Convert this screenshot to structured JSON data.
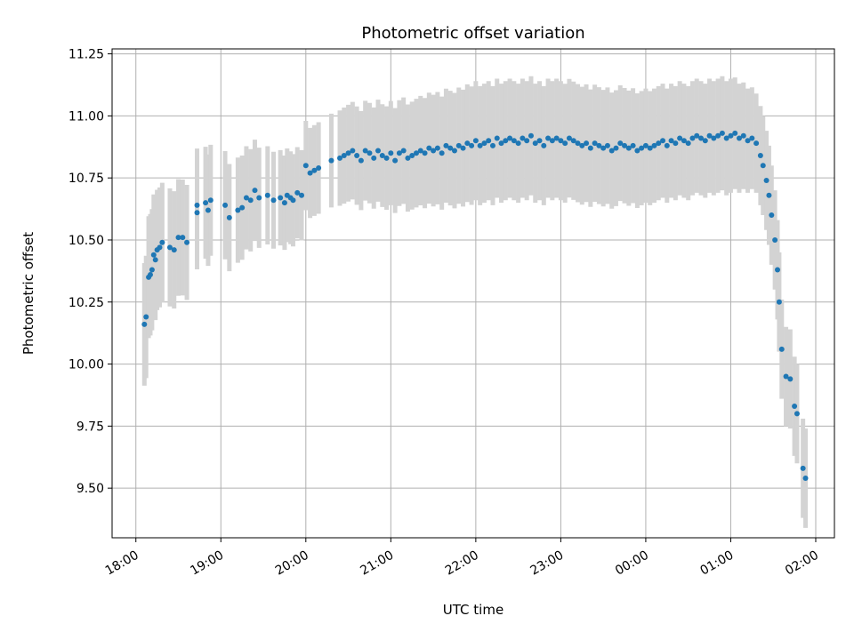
{
  "chart_data": {
    "type": "scatter",
    "title": "Photometric offset variation",
    "xlabel": "UTC time",
    "ylabel": "Photometric offset",
    "x_tick_labels": [
      "18:00",
      "19:00",
      "20:00",
      "21:00",
      "22:00",
      "23:00",
      "00:00",
      "01:00",
      "02:00"
    ],
    "y_tick_labels": [
      "9.50",
      "9.75",
      "10.00",
      "10.25",
      "10.50",
      "10.75",
      "11.00",
      "11.25"
    ],
    "x_unit": "hours since 18:00 UTC",
    "xlim": [
      -0.28,
      8.22
    ],
    "ylim": [
      9.3,
      11.27
    ],
    "grid": true,
    "colors": {
      "points": "#1f77b4",
      "errorbars": "#d3d3d3",
      "grid": "#b0b0b0"
    },
    "errorbar_halfwidth": [
      [
        0.0,
        0.25
      ],
      [
        1.0,
        0.22
      ],
      [
        2.0,
        0.18
      ],
      [
        3.0,
        0.21
      ],
      [
        4.0,
        0.24
      ],
      [
        5.0,
        0.24
      ],
      [
        6.0,
        0.23
      ],
      [
        7.0,
        0.23
      ],
      [
        7.3,
        0.2
      ],
      [
        7.9,
        0.2
      ]
    ],
    "series": [
      {
        "values": [
          [
            0.1,
            10.16
          ],
          [
            0.12,
            10.19
          ],
          [
            0.15,
            10.35
          ],
          [
            0.17,
            10.36
          ],
          [
            0.19,
            10.38
          ],
          [
            0.21,
            10.44
          ],
          [
            0.23,
            10.42
          ],
          [
            0.25,
            10.46
          ],
          [
            0.28,
            10.47
          ],
          [
            0.31,
            10.49
          ],
          [
            0.4,
            10.47
          ],
          [
            0.45,
            10.46
          ],
          [
            0.5,
            10.51
          ],
          [
            0.55,
            10.51
          ],
          [
            0.6,
            10.49
          ],
          [
            0.72,
            10.64
          ],
          [
            0.72,
            10.61
          ],
          [
            0.82,
            10.65
          ],
          [
            0.85,
            10.62
          ],
          [
            0.88,
            10.66
          ],
          [
            1.05,
            10.64
          ],
          [
            1.1,
            10.59
          ],
          [
            1.2,
            10.62
          ],
          [
            1.25,
            10.63
          ],
          [
            1.3,
            10.67
          ],
          [
            1.35,
            10.66
          ],
          [
            1.4,
            10.7
          ],
          [
            1.45,
            10.67
          ],
          [
            1.55,
            10.68
          ],
          [
            1.62,
            10.66
          ],
          [
            1.7,
            10.67
          ],
          [
            1.75,
            10.65
          ],
          [
            1.78,
            10.68
          ],
          [
            1.82,
            10.67
          ],
          [
            1.85,
            10.66
          ],
          [
            1.9,
            10.69
          ],
          [
            1.95,
            10.68
          ],
          [
            2.0,
            10.8
          ],
          [
            2.05,
            10.77
          ],
          [
            2.1,
            10.78
          ],
          [
            2.15,
            10.79
          ],
          [
            2.3,
            10.82
          ],
          [
            2.4,
            10.83
          ],
          [
            2.45,
            10.84
          ],
          [
            2.5,
            10.85
          ],
          [
            2.55,
            10.86
          ],
          [
            2.6,
            10.84
          ],
          [
            2.65,
            10.82
          ],
          [
            2.7,
            10.86
          ],
          [
            2.75,
            10.85
          ],
          [
            2.8,
            10.83
          ],
          [
            2.85,
            10.86
          ],
          [
            2.9,
            10.84
          ],
          [
            2.95,
            10.83
          ],
          [
            3.0,
            10.85
          ],
          [
            3.05,
            10.82
          ],
          [
            3.1,
            10.85
          ],
          [
            3.15,
            10.86
          ],
          [
            3.2,
            10.83
          ],
          [
            3.25,
            10.84
          ],
          [
            3.3,
            10.85
          ],
          [
            3.35,
            10.86
          ],
          [
            3.4,
            10.85
          ],
          [
            3.45,
            10.87
          ],
          [
            3.5,
            10.86
          ],
          [
            3.55,
            10.87
          ],
          [
            3.6,
            10.85
          ],
          [
            3.65,
            10.88
          ],
          [
            3.7,
            10.87
          ],
          [
            3.75,
            10.86
          ],
          [
            3.8,
            10.88
          ],
          [
            3.85,
            10.87
          ],
          [
            3.9,
            10.89
          ],
          [
            3.95,
            10.88
          ],
          [
            4.0,
            10.9
          ],
          [
            4.05,
            10.88
          ],
          [
            4.1,
            10.89
          ],
          [
            4.15,
            10.9
          ],
          [
            4.2,
            10.88
          ],
          [
            4.25,
            10.91
          ],
          [
            4.3,
            10.89
          ],
          [
            4.35,
            10.9
          ],
          [
            4.4,
            10.91
          ],
          [
            4.45,
            10.9
          ],
          [
            4.5,
            10.89
          ],
          [
            4.55,
            10.91
          ],
          [
            4.6,
            10.9
          ],
          [
            4.65,
            10.92
          ],
          [
            4.7,
            10.89
          ],
          [
            4.75,
            10.9
          ],
          [
            4.8,
            10.88
          ],
          [
            4.85,
            10.91
          ],
          [
            4.9,
            10.9
          ],
          [
            4.95,
            10.91
          ],
          [
            5.0,
            10.9
          ],
          [
            5.05,
            10.89
          ],
          [
            5.1,
            10.91
          ],
          [
            5.15,
            10.9
          ],
          [
            5.2,
            10.89
          ],
          [
            5.25,
            10.88
          ],
          [
            5.3,
            10.89
          ],
          [
            5.35,
            10.87
          ],
          [
            5.4,
            10.89
          ],
          [
            5.45,
            10.88
          ],
          [
            5.5,
            10.87
          ],
          [
            5.55,
            10.88
          ],
          [
            5.6,
            10.86
          ],
          [
            5.65,
            10.87
          ],
          [
            5.7,
            10.89
          ],
          [
            5.75,
            10.88
          ],
          [
            5.8,
            10.87
          ],
          [
            5.85,
            10.88
          ],
          [
            5.9,
            10.86
          ],
          [
            5.95,
            10.87
          ],
          [
            6.0,
            10.88
          ],
          [
            6.05,
            10.87
          ],
          [
            6.1,
            10.88
          ],
          [
            6.15,
            10.89
          ],
          [
            6.2,
            10.9
          ],
          [
            6.25,
            10.88
          ],
          [
            6.3,
            10.9
          ],
          [
            6.35,
            10.89
          ],
          [
            6.4,
            10.91
          ],
          [
            6.45,
            10.9
          ],
          [
            6.5,
            10.89
          ],
          [
            6.55,
            10.91
          ],
          [
            6.6,
            10.92
          ],
          [
            6.65,
            10.91
          ],
          [
            6.7,
            10.9
          ],
          [
            6.75,
            10.92
          ],
          [
            6.8,
            10.91
          ],
          [
            6.85,
            10.92
          ],
          [
            6.9,
            10.93
          ],
          [
            6.95,
            10.91
          ],
          [
            7.0,
            10.92
          ],
          [
            7.05,
            10.93
          ],
          [
            7.1,
            10.91
          ],
          [
            7.15,
            10.92
          ],
          [
            7.2,
            10.9
          ],
          [
            7.25,
            10.91
          ],
          [
            7.3,
            10.89
          ],
          [
            7.35,
            10.84
          ],
          [
            7.38,
            10.8
          ],
          [
            7.42,
            10.74
          ],
          [
            7.45,
            10.68
          ],
          [
            7.48,
            10.6
          ],
          [
            7.52,
            10.5
          ],
          [
            7.55,
            10.38
          ],
          [
            7.57,
            10.25
          ],
          [
            7.6,
            10.06
          ],
          [
            7.65,
            9.95
          ],
          [
            7.7,
            9.94
          ],
          [
            7.75,
            9.83
          ],
          [
            7.78,
            9.8
          ],
          [
            7.85,
            9.58
          ],
          [
            7.88,
            9.54
          ]
        ]
      }
    ]
  }
}
